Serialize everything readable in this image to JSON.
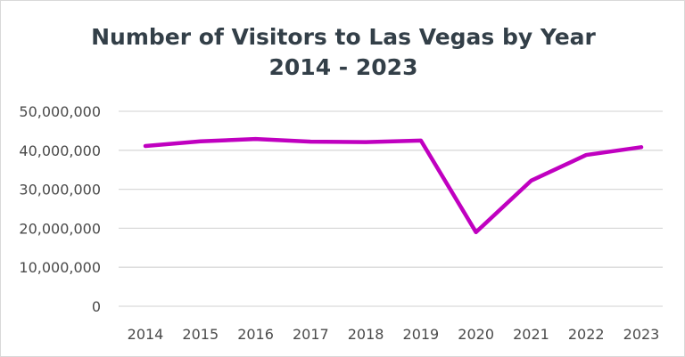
{
  "chart_data": {
    "type": "line",
    "title": "Number of Visitors to Las Vegas by Year",
    "subtitle": "2014 - 2023",
    "xlabel": "",
    "ylabel": "",
    "categories": [
      "2014",
      "2015",
      "2016",
      "2017",
      "2018",
      "2019",
      "2020",
      "2021",
      "2022",
      "2023"
    ],
    "values": [
      41100000,
      42300000,
      42900000,
      42200000,
      42100000,
      42500000,
      19000000,
      32200000,
      38800000,
      40800000
    ],
    "ylim": [
      0,
      50000000
    ],
    "yticks": [
      "0",
      "10,000,000",
      "20,000,000",
      "30,000,000",
      "40,000,000",
      "50,000,000"
    ],
    "grid": true,
    "legend": "none",
    "line_color": "#c000c0"
  }
}
